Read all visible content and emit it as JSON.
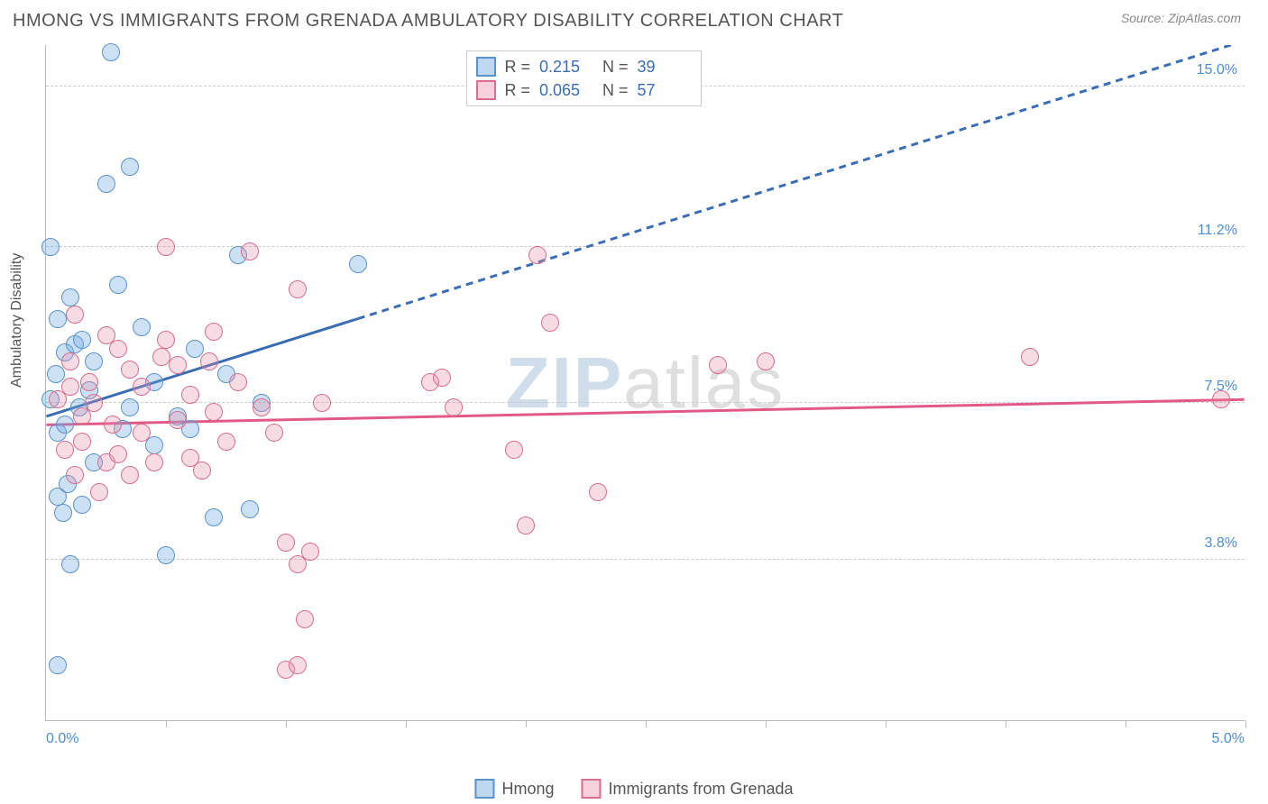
{
  "header": {
    "title": "HMONG VS IMMIGRANTS FROM GRENADA AMBULATORY DISABILITY CORRELATION CHART",
    "source": "Source: ZipAtlas.com"
  },
  "chart": {
    "type": "scatter",
    "y_axis_label": "Ambulatory Disability",
    "xlim": [
      0.0,
      5.0
    ],
    "ylim": [
      0.0,
      16.0
    ],
    "x_labels": {
      "min": "0.0%",
      "max": "5.0%"
    },
    "x_label_color": "#4a8fd8",
    "y_gridlines": [
      3.8,
      7.5,
      11.2,
      15.0
    ],
    "y_gridline_labels": [
      "3.8%",
      "7.5%",
      "11.2%",
      "15.0%"
    ],
    "y_label_color": "#4a8fd8",
    "x_ticks": [
      0.5,
      1.0,
      1.5,
      2.0,
      2.5,
      3.0,
      3.5,
      4.0,
      4.5,
      5.0
    ],
    "grid_color": "#cccccc",
    "background_color": "#ffffff",
    "marker_radius": 10,
    "marker_opacity": 0.45,
    "series": [
      {
        "name": "Hmong",
        "color": "#6fa8e0",
        "fill": "rgba(111,168,224,0.35)",
        "stroke": "#5a93cc",
        "r": 0.215,
        "n": 39,
        "trend": {
          "x1": 0.0,
          "y1": 7.2,
          "x2": 5.0,
          "y2": 16.1,
          "solid_until_x": 1.3,
          "color": "#3a6db5",
          "width": 3,
          "dash": "8,6"
        },
        "points": [
          [
            0.02,
            11.2
          ],
          [
            0.02,
            7.6
          ],
          [
            0.04,
            8.2
          ],
          [
            0.05,
            9.5
          ],
          [
            0.05,
            6.8
          ],
          [
            0.05,
            5.3
          ],
          [
            0.05,
            1.3
          ],
          [
            0.07,
            4.9
          ],
          [
            0.08,
            8.7
          ],
          [
            0.08,
            7.0
          ],
          [
            0.09,
            5.6
          ],
          [
            0.1,
            10.0
          ],
          [
            0.1,
            3.7
          ],
          [
            0.12,
            8.9
          ],
          [
            0.14,
            7.4
          ],
          [
            0.15,
            9.0
          ],
          [
            0.15,
            5.1
          ],
          [
            0.18,
            7.8
          ],
          [
            0.2,
            8.5
          ],
          [
            0.2,
            6.1
          ],
          [
            0.25,
            12.7
          ],
          [
            0.27,
            15.8
          ],
          [
            0.3,
            10.3
          ],
          [
            0.32,
            6.9
          ],
          [
            0.35,
            7.4
          ],
          [
            0.35,
            13.1
          ],
          [
            0.4,
            9.3
          ],
          [
            0.45,
            8.0
          ],
          [
            0.45,
            6.5
          ],
          [
            0.5,
            3.9
          ],
          [
            0.55,
            7.2
          ],
          [
            0.6,
            6.9
          ],
          [
            0.62,
            8.8
          ],
          [
            0.7,
            4.8
          ],
          [
            0.75,
            8.2
          ],
          [
            0.8,
            11.0
          ],
          [
            0.85,
            5.0
          ],
          [
            0.9,
            7.5
          ],
          [
            1.3,
            10.8
          ]
        ]
      },
      {
        "name": "Immigants from Grenada",
        "label": "Immigrants from Grenada",
        "color": "#e88ca5",
        "fill": "rgba(232,140,165,0.30)",
        "stroke": "#d76f8e",
        "r": 0.065,
        "n": 57,
        "trend": {
          "x1": 0.0,
          "y1": 7.0,
          "x2": 5.0,
          "y2": 7.6,
          "solid_until_x": 5.0,
          "color": "#e05a84",
          "width": 3,
          "dash": ""
        },
        "points": [
          [
            0.05,
            7.6
          ],
          [
            0.08,
            6.4
          ],
          [
            0.1,
            8.5
          ],
          [
            0.1,
            7.9
          ],
          [
            0.12,
            9.6
          ],
          [
            0.12,
            5.8
          ],
          [
            0.15,
            7.2
          ],
          [
            0.15,
            6.6
          ],
          [
            0.18,
            8.0
          ],
          [
            0.2,
            7.5
          ],
          [
            0.22,
            5.4
          ],
          [
            0.25,
            9.1
          ],
          [
            0.25,
            6.1
          ],
          [
            0.28,
            7.0
          ],
          [
            0.3,
            8.8
          ],
          [
            0.3,
            6.3
          ],
          [
            0.35,
            8.3
          ],
          [
            0.35,
            5.8
          ],
          [
            0.4,
            6.8
          ],
          [
            0.4,
            7.9
          ],
          [
            0.45,
            6.1
          ],
          [
            0.48,
            8.6
          ],
          [
            0.5,
            9.0
          ],
          [
            0.5,
            11.2
          ],
          [
            0.55,
            8.4
          ],
          [
            0.55,
            7.1
          ],
          [
            0.6,
            6.2
          ],
          [
            0.6,
            7.7
          ],
          [
            0.65,
            5.9
          ],
          [
            0.68,
            8.5
          ],
          [
            0.7,
            9.2
          ],
          [
            0.7,
            7.3
          ],
          [
            0.75,
            6.6
          ],
          [
            0.8,
            8.0
          ],
          [
            0.85,
            11.1
          ],
          [
            0.9,
            7.4
          ],
          [
            0.95,
            6.8
          ],
          [
            1.0,
            1.2
          ],
          [
            1.0,
            4.2
          ],
          [
            1.05,
            3.7
          ],
          [
            1.05,
            1.3
          ],
          [
            1.05,
            10.2
          ],
          [
            1.08,
            2.4
          ],
          [
            1.1,
            4.0
          ],
          [
            1.15,
            7.5
          ],
          [
            1.6,
            8.0
          ],
          [
            1.65,
            8.1
          ],
          [
            1.95,
            6.4
          ],
          [
            2.0,
            4.6
          ],
          [
            2.05,
            11.0
          ],
          [
            2.1,
            9.4
          ],
          [
            2.3,
            5.4
          ],
          [
            2.8,
            8.4
          ],
          [
            3.0,
            8.5
          ],
          [
            4.1,
            8.6
          ],
          [
            4.9,
            7.6
          ],
          [
            1.7,
            7.4
          ]
        ]
      }
    ],
    "legend_corr": {
      "rows": [
        {
          "swatch_fill": "rgba(111,168,224,0.45)",
          "swatch_stroke": "#5a93cc",
          "r_label": "R =",
          "r_val": "0.215",
          "n_label": "N =",
          "n_val": "39"
        },
        {
          "swatch_fill": "rgba(232,140,165,0.40)",
          "swatch_stroke": "#d76f8e",
          "r_label": "R =",
          "r_val": "0.065",
          "n_label": "N =",
          "n_val": "57"
        }
      ],
      "value_color": "#3a6db5"
    },
    "legend_bottom": [
      {
        "swatch_fill": "rgba(111,168,224,0.45)",
        "swatch_stroke": "#5a93cc",
        "label": "Hmong"
      },
      {
        "swatch_fill": "rgba(232,140,165,0.40)",
        "swatch_stroke": "#d76f8e",
        "label": "Immigrants from Grenada"
      }
    ],
    "watermark": {
      "text_bold": "ZIP",
      "text_light": "atlas",
      "color_bold": "rgba(120,160,200,0.35)",
      "color_light": "rgba(150,150,150,0.30)"
    }
  }
}
